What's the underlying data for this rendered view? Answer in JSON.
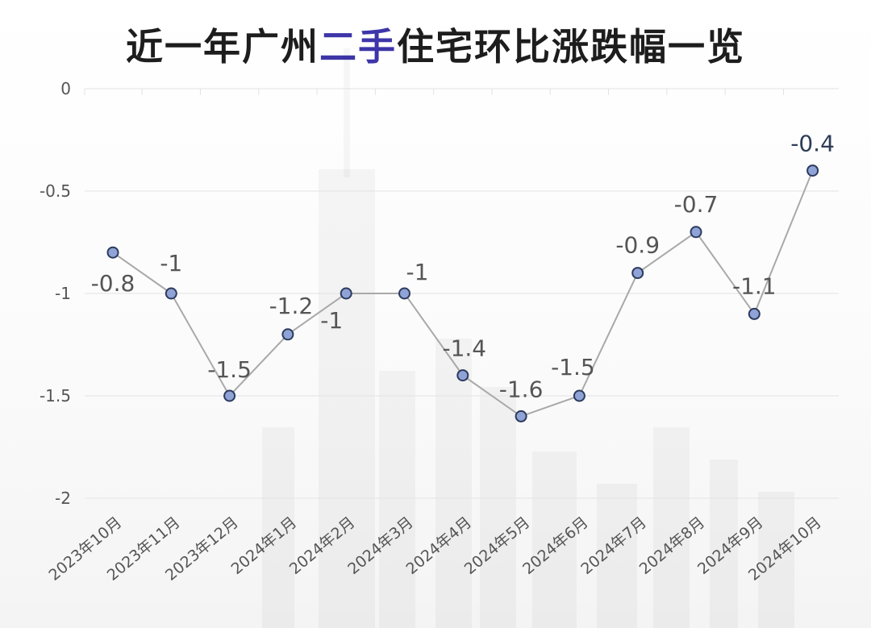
{
  "title": {
    "part1": "近一年广州",
    "highlight": "二手",
    "part2": "住宅环比涨跌幅一览"
  },
  "colors": {
    "highlight": "#3d35a8",
    "line": "#a9a9a9",
    "marker_fill": "#8fa3d6",
    "marker_stroke": "#2c3a5c",
    "grid": "#e3e3e3",
    "last_label": "#2e3d57"
  },
  "chart_data": {
    "type": "line",
    "categories": [
      "2023年10月",
      "2023年11月",
      "2023年12月",
      "2024年1月",
      "2024年2月",
      "2024年3月",
      "2024年4月",
      "2024年5月",
      "2024年6月",
      "2024年7月",
      "2024年8月",
      "2024年9月",
      "2024年10月"
    ],
    "series": [
      {
        "values": [
          -0.8,
          -1,
          -1.5,
          -1.2,
          -1,
          -1,
          -1.4,
          -1.6,
          -1.5,
          -0.9,
          -0.7,
          -1.1,
          -0.4
        ]
      }
    ],
    "data_labels": [
      "-0.8",
      "-1",
      "-1.5",
      "-1.2",
      "-1",
      "-1",
      "-1.4",
      "-1.6",
      "-1.5",
      "-0.9",
      "-0.7",
      "-1.1",
      "-0.4"
    ],
    "yticks": [
      0,
      -0.5,
      -1,
      -1.5,
      -2
    ],
    "ytick_labels": [
      "0",
      "-0.5",
      "-1",
      "-1.5",
      "-2"
    ],
    "ylim": [
      -2,
      0
    ],
    "grid": true,
    "legend": "none"
  }
}
